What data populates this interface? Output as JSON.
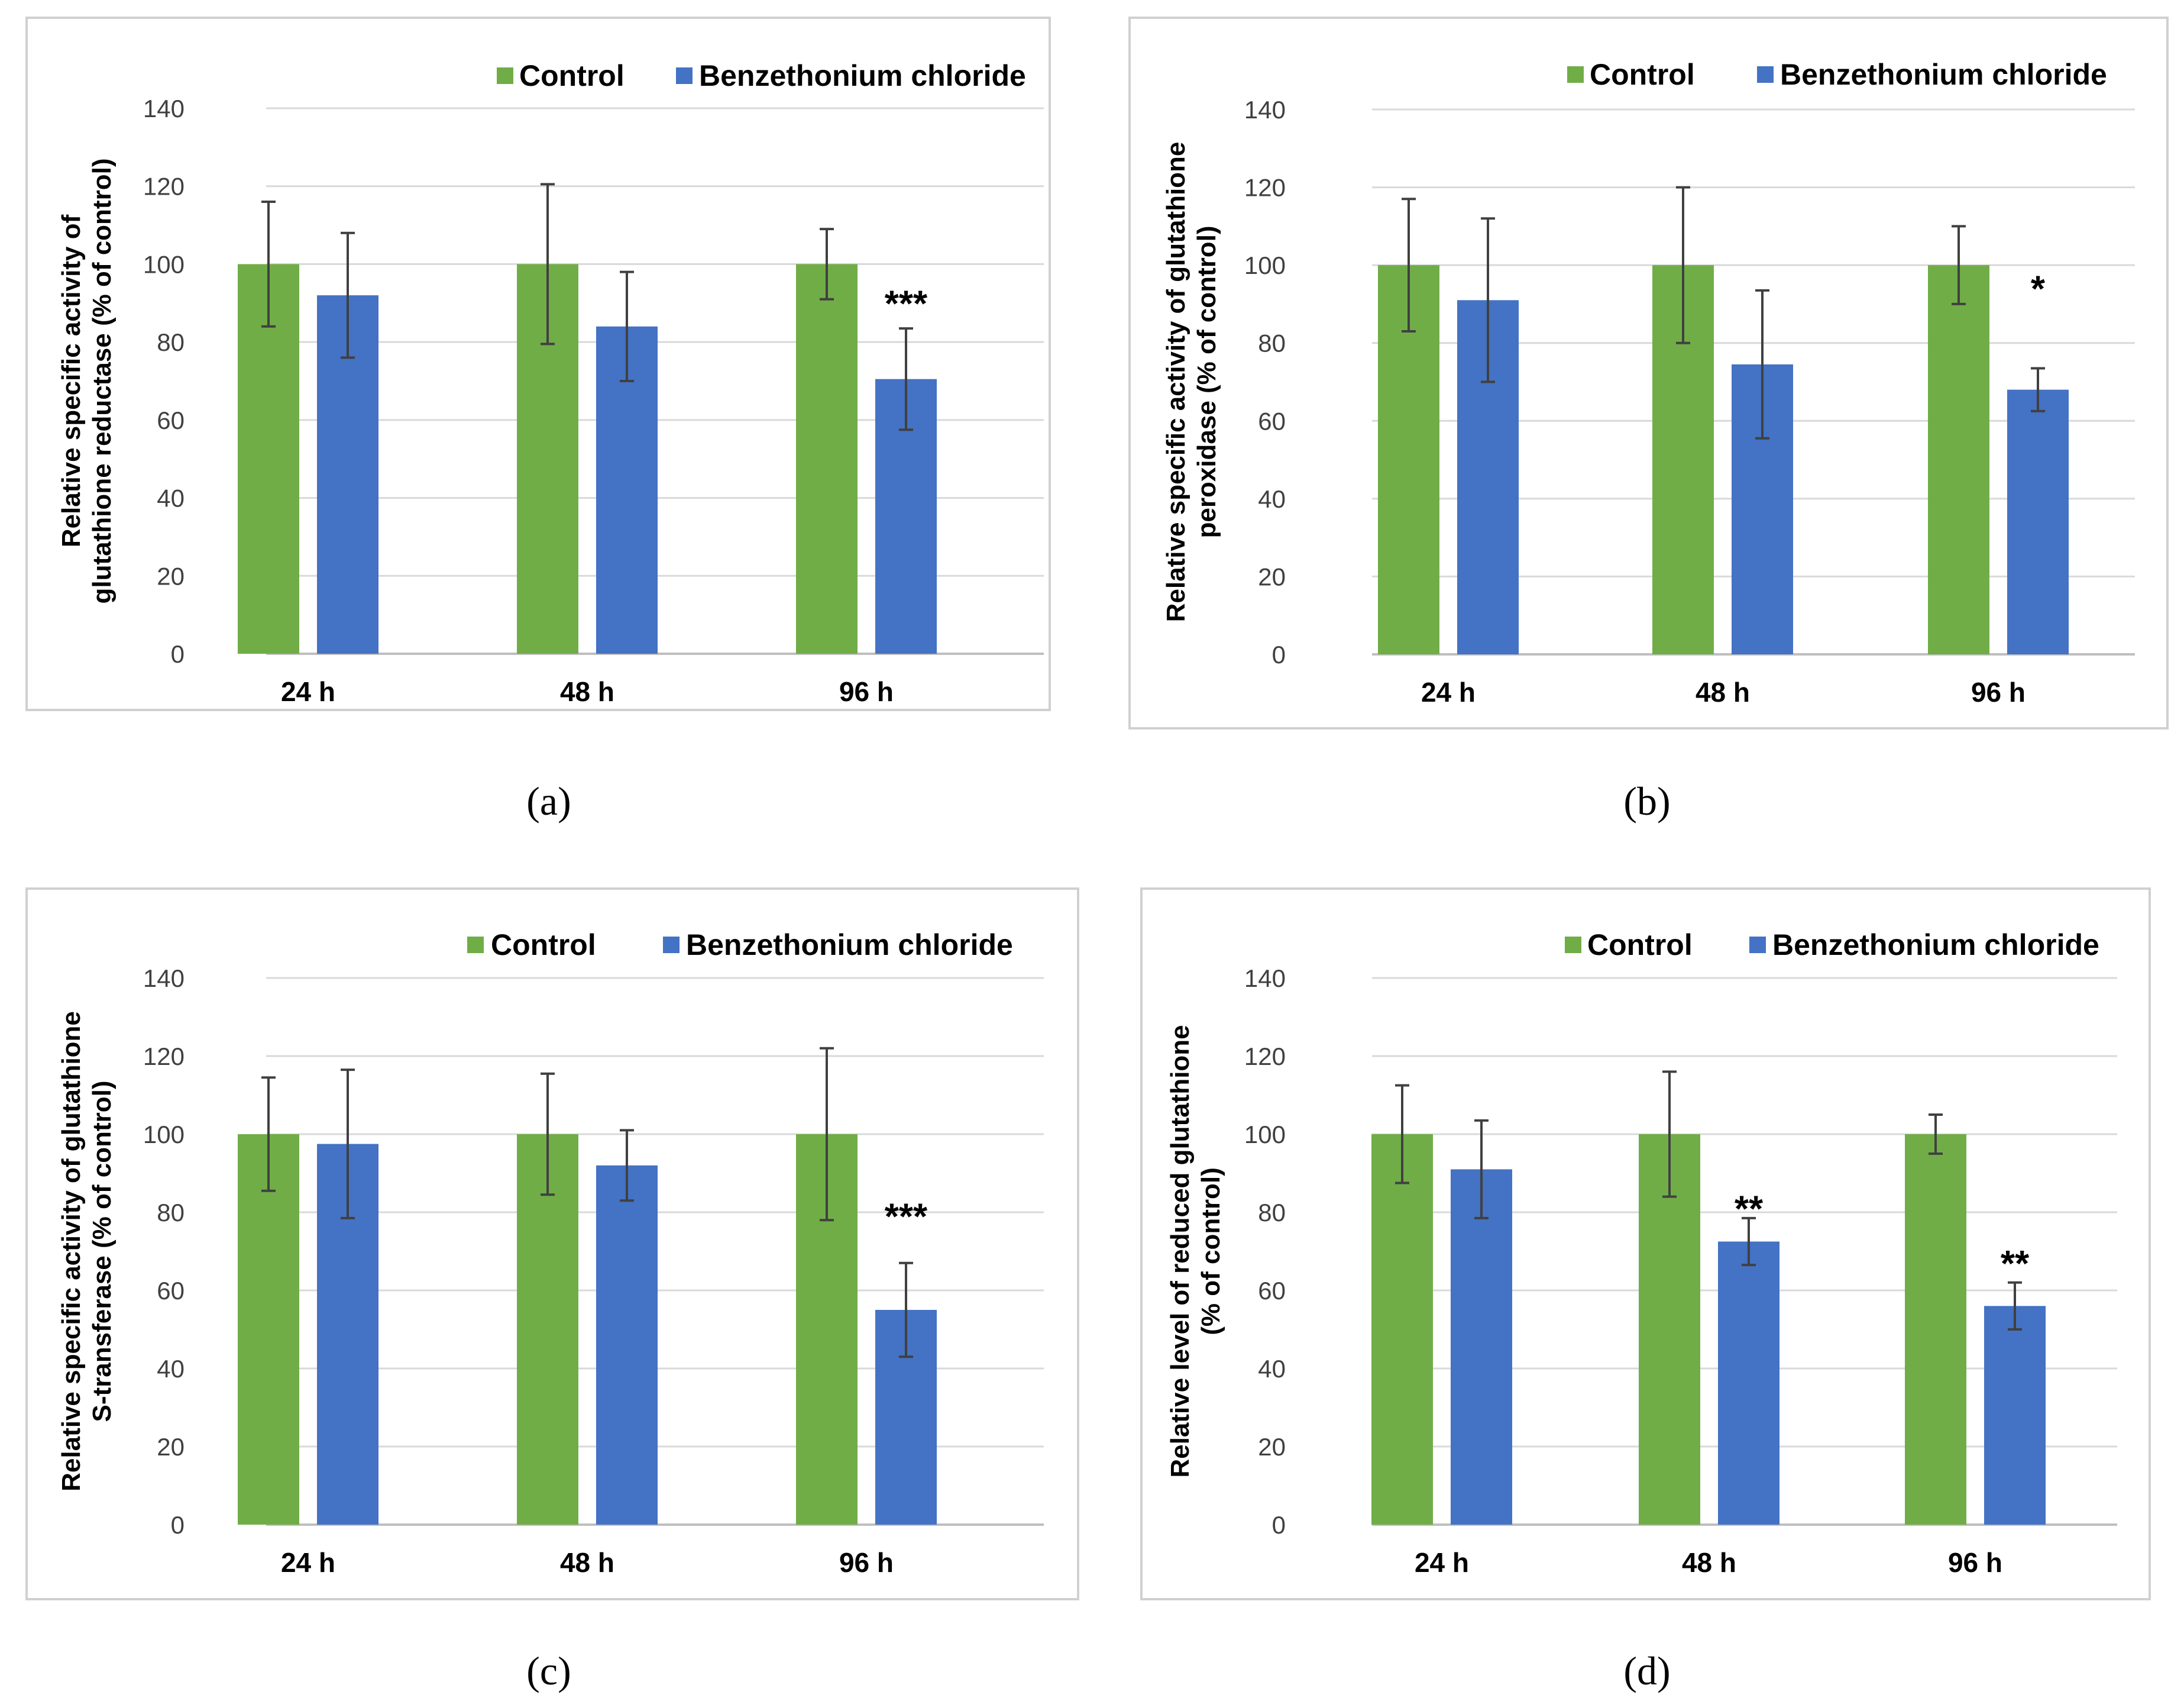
{
  "chart_data": [
    {
      "type": "bar",
      "panel_label": "(a)",
      "ylabel": [
        "Relative specific activity of",
        "glutathione reductase (% of control)"
      ],
      "categories": [
        "24 h",
        "48 h",
        "96 h"
      ],
      "ylim": [
        0,
        140
      ],
      "yticks": [
        0,
        20,
        40,
        60,
        80,
        100,
        120,
        140
      ],
      "grid": true,
      "legend_position": "top",
      "series": [
        {
          "name": "Control",
          "color": "#70AD47",
          "values": [
            100,
            100,
            100
          ],
          "errors": [
            16,
            20.5,
            9
          ]
        },
        {
          "name": "Benzethonium chloride",
          "color": "#4472C4",
          "values": [
            92,
            84,
            70.5
          ],
          "errors": [
            16,
            14,
            13
          ]
        }
      ],
      "annotations": [
        {
          "category": "96 h",
          "series": "Benzethonium chloride",
          "text": "***",
          "y": 90
        }
      ]
    },
    {
      "type": "bar",
      "panel_label": "(b)",
      "ylabel": [
        "Relative specific activity of glutathione",
        "peroxidase (% of control)"
      ],
      "categories": [
        "24 h",
        "48 h",
        "96 h"
      ],
      "ylim": [
        0,
        140
      ],
      "yticks": [
        0,
        20,
        40,
        60,
        80,
        100,
        120,
        140
      ],
      "grid": true,
      "legend_position": "top",
      "series": [
        {
          "name": "Control",
          "color": "#70AD47",
          "values": [
            100,
            100,
            100
          ],
          "errors": [
            17,
            20,
            10
          ]
        },
        {
          "name": "Benzethonium chloride",
          "color": "#4472C4",
          "values": [
            91,
            74.5,
            68
          ],
          "errors": [
            21,
            19,
            5.5
          ]
        }
      ],
      "annotations": [
        {
          "category": "96 h",
          "series": "Benzethonium chloride",
          "text": "*",
          "y": 94
        }
      ]
    },
    {
      "type": "bar",
      "panel_label": "(c)",
      "ylabel": [
        "Relative specific activity of glutathione",
        "S-transferase (% of control)"
      ],
      "categories": [
        "24 h",
        "48 h",
        "96 h"
      ],
      "ylim": [
        0,
        140
      ],
      "yticks": [
        0,
        20,
        40,
        60,
        80,
        100,
        120,
        140
      ],
      "grid": true,
      "legend_position": "top",
      "series": [
        {
          "name": "Control",
          "color": "#70AD47",
          "values": [
            100,
            100,
            100
          ],
          "errors": [
            14.5,
            15.5,
            22
          ]
        },
        {
          "name": "Benzethonium chloride",
          "color": "#4472C4",
          "values": [
            97.5,
            92,
            55
          ],
          "errors": [
            19,
            9,
            12
          ]
        }
      ],
      "annotations": [
        {
          "category": "96 h",
          "series": "Benzethonium chloride",
          "text": "***",
          "y": 79
        }
      ]
    },
    {
      "type": "bar",
      "panel_label": "(d)",
      "ylabel": [
        "Relative level of reduced glutathione",
        "(% of control)"
      ],
      "categories": [
        "24 h",
        "48 h",
        "96 h"
      ],
      "ylim": [
        0,
        140
      ],
      "yticks": [
        0,
        20,
        40,
        60,
        80,
        100,
        120,
        140
      ],
      "grid": true,
      "legend_position": "top",
      "series": [
        {
          "name": "Control",
          "color": "#70AD47",
          "values": [
            100,
            100,
            100
          ],
          "errors": [
            12.5,
            16,
            5
          ]
        },
        {
          "name": "Benzethonium chloride",
          "color": "#4472C4",
          "values": [
            91,
            72.5,
            56
          ],
          "errors": [
            12.5,
            6,
            6
          ]
        }
      ],
      "annotations": [
        {
          "category": "48 h",
          "series": "Benzethonium chloride",
          "text": "**",
          "y": 81
        },
        {
          "category": "96 h",
          "series": "Benzethonium chloride",
          "text": "**",
          "y": 67
        }
      ]
    }
  ]
}
